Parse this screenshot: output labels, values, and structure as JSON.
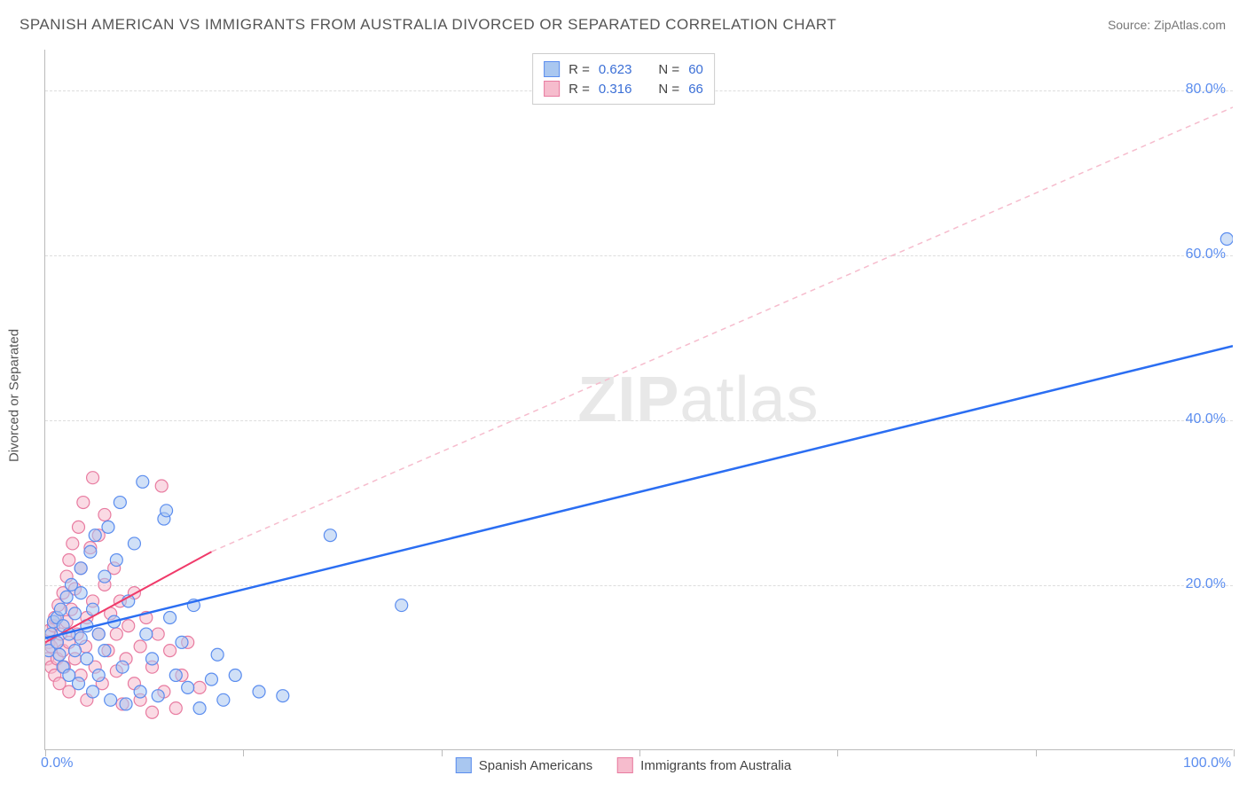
{
  "title": "SPANISH AMERICAN VS IMMIGRANTS FROM AUSTRALIA DIVORCED OR SEPARATED CORRELATION CHART",
  "source": "Source: ZipAtlas.com",
  "ylabel": "Divorced or Separated",
  "watermark": {
    "bold": "ZIP",
    "light": "atlas"
  },
  "chart": {
    "type": "scatter",
    "background_color": "#ffffff",
    "grid_color": "#dddddd",
    "axis_color": "#bbbbbb",
    "xlim": [
      0,
      100
    ],
    "ylim": [
      0,
      85
    ],
    "xticks_minor": [
      0,
      16.67,
      33.33,
      50,
      66.67,
      83.33,
      100
    ],
    "xtick_labels": [
      {
        "pos": 0,
        "text": "0.0%"
      },
      {
        "pos": 100,
        "text": "100.0%"
      }
    ],
    "ytick_labels": [
      {
        "pos": 20,
        "text": "20.0%"
      },
      {
        "pos": 40,
        "text": "40.0%"
      },
      {
        "pos": 60,
        "text": "60.0%"
      },
      {
        "pos": 80,
        "text": "80.0%"
      }
    ],
    "ygrid": [
      20,
      40,
      60,
      80
    ],
    "marker_radius": 7,
    "marker_stroke_width": 1.2,
    "series": [
      {
        "id": "spanish",
        "label": "Spanish Americans",
        "fill": "#a9c7f0",
        "stroke": "#5b8def",
        "fill_opacity": 0.55,
        "R": "0.623",
        "N": "60",
        "trend": {
          "x1": 0,
          "y1": 13.5,
          "x2": 100,
          "y2": 49,
          "stroke": "#2b6ef2",
          "width": 2.5,
          "dash": "none"
        },
        "points": [
          [
            0.3,
            12
          ],
          [
            0.5,
            14
          ],
          [
            0.7,
            15.5
          ],
          [
            1,
            13
          ],
          [
            1,
            16
          ],
          [
            1.2,
            11.5
          ],
          [
            1.3,
            17
          ],
          [
            1.5,
            10
          ],
          [
            1.5,
            15
          ],
          [
            1.8,
            18.5
          ],
          [
            2,
            9
          ],
          [
            2,
            14
          ],
          [
            2.2,
            20
          ],
          [
            2.5,
            12
          ],
          [
            2.5,
            16.5
          ],
          [
            2.8,
            8
          ],
          [
            3,
            19
          ],
          [
            3,
            13.5
          ],
          [
            3,
            22
          ],
          [
            3.5,
            11
          ],
          [
            3.5,
            15
          ],
          [
            3.8,
            24
          ],
          [
            4,
            7
          ],
          [
            4,
            17
          ],
          [
            4.2,
            26
          ],
          [
            4.5,
            14
          ],
          [
            4.5,
            9
          ],
          [
            5,
            21
          ],
          [
            5,
            12
          ],
          [
            5.3,
            27
          ],
          [
            5.5,
            6
          ],
          [
            5.8,
            15.5
          ],
          [
            6,
            23
          ],
          [
            6.3,
            30
          ],
          [
            6.5,
            10
          ],
          [
            6.8,
            5.5
          ],
          [
            7,
            18
          ],
          [
            7.5,
            25
          ],
          [
            8,
            7
          ],
          [
            8.2,
            32.5
          ],
          [
            8.5,
            14
          ],
          [
            9,
            11
          ],
          [
            9.5,
            6.5
          ],
          [
            10,
            28
          ],
          [
            10.2,
            29
          ],
          [
            10.5,
            16
          ],
          [
            11,
            9
          ],
          [
            11.5,
            13
          ],
          [
            12,
            7.5
          ],
          [
            12.5,
            17.5
          ],
          [
            13,
            5
          ],
          [
            14,
            8.5
          ],
          [
            14.5,
            11.5
          ],
          [
            15,
            6
          ],
          [
            16,
            9
          ],
          [
            18,
            7
          ],
          [
            20,
            6.5
          ],
          [
            24,
            26
          ],
          [
            30,
            17.5
          ],
          [
            99.5,
            62
          ]
        ]
      },
      {
        "id": "australia",
        "label": "Immigrants from Australia",
        "fill": "#f6bccd",
        "stroke": "#e87ba0",
        "fill_opacity": 0.55,
        "R": "0.316",
        "N": "66",
        "trend_solid": {
          "x1": 0,
          "y1": 13,
          "x2": 14,
          "y2": 24,
          "stroke": "#f03a6a",
          "width": 2,
          "dash": "none"
        },
        "trend_dashed": {
          "x1": 14,
          "y1": 24,
          "x2": 100,
          "y2": 78,
          "stroke": "#f6bccd",
          "width": 1.5,
          "dash": "6,5"
        },
        "points": [
          [
            0.2,
            11
          ],
          [
            0.3,
            13
          ],
          [
            0.4,
            14.5
          ],
          [
            0.5,
            10
          ],
          [
            0.5,
            12.5
          ],
          [
            0.7,
            15
          ],
          [
            0.8,
            9
          ],
          [
            0.8,
            16
          ],
          [
            1,
            13
          ],
          [
            1,
            11
          ],
          [
            1.1,
            17.5
          ],
          [
            1.2,
            8
          ],
          [
            1.3,
            14
          ],
          [
            1.5,
            19
          ],
          [
            1.5,
            12
          ],
          [
            1.6,
            10
          ],
          [
            1.8,
            21
          ],
          [
            1.8,
            15.5
          ],
          [
            2,
            23
          ],
          [
            2,
            13
          ],
          [
            2,
            7
          ],
          [
            2.2,
            17
          ],
          [
            2.3,
            25
          ],
          [
            2.5,
            11
          ],
          [
            2.5,
            19.5
          ],
          [
            2.7,
            14
          ],
          [
            2.8,
            27
          ],
          [
            3,
            9
          ],
          [
            3,
            22
          ],
          [
            3.2,
            30
          ],
          [
            3.4,
            12.5
          ],
          [
            3.5,
            16
          ],
          [
            3.5,
            6
          ],
          [
            3.8,
            24.5
          ],
          [
            4,
            33
          ],
          [
            4,
            18
          ],
          [
            4.2,
            10
          ],
          [
            4.5,
            26
          ],
          [
            4.5,
            14
          ],
          [
            4.8,
            8
          ],
          [
            5,
            20
          ],
          [
            5,
            28.5
          ],
          [
            5.3,
            12
          ],
          [
            5.5,
            16.5
          ],
          [
            5.8,
            22
          ],
          [
            6,
            9.5
          ],
          [
            6,
            14
          ],
          [
            6.3,
            18
          ],
          [
            6.5,
            5.5
          ],
          [
            6.8,
            11
          ],
          [
            7,
            15
          ],
          [
            7.5,
            8
          ],
          [
            7.5,
            19
          ],
          [
            8,
            6
          ],
          [
            8,
            12.5
          ],
          [
            8.5,
            16
          ],
          [
            9,
            4.5
          ],
          [
            9,
            10
          ],
          [
            9.5,
            14
          ],
          [
            9.8,
            32
          ],
          [
            10,
            7
          ],
          [
            10.5,
            12
          ],
          [
            11,
            5
          ],
          [
            11.5,
            9
          ],
          [
            12,
            13
          ],
          [
            13,
            7.5
          ]
        ]
      }
    ]
  },
  "legend_top": {
    "rows": [
      {
        "swatch_fill": "#a9c7f0",
        "swatch_stroke": "#5b8def",
        "r_label": "R =",
        "r_val": "0.623",
        "n_label": "N =",
        "n_val": "60"
      },
      {
        "swatch_fill": "#f6bccd",
        "swatch_stroke": "#e87ba0",
        "r_label": "R =",
        "r_val": "0.316",
        "n_label": "N =",
        "n_val": "66"
      }
    ]
  },
  "legend_bottom": [
    {
      "swatch_fill": "#a9c7f0",
      "swatch_stroke": "#5b8def",
      "label": "Spanish Americans"
    },
    {
      "swatch_fill": "#f6bccd",
      "swatch_stroke": "#e87ba0",
      "label": "Immigrants from Australia"
    }
  ]
}
